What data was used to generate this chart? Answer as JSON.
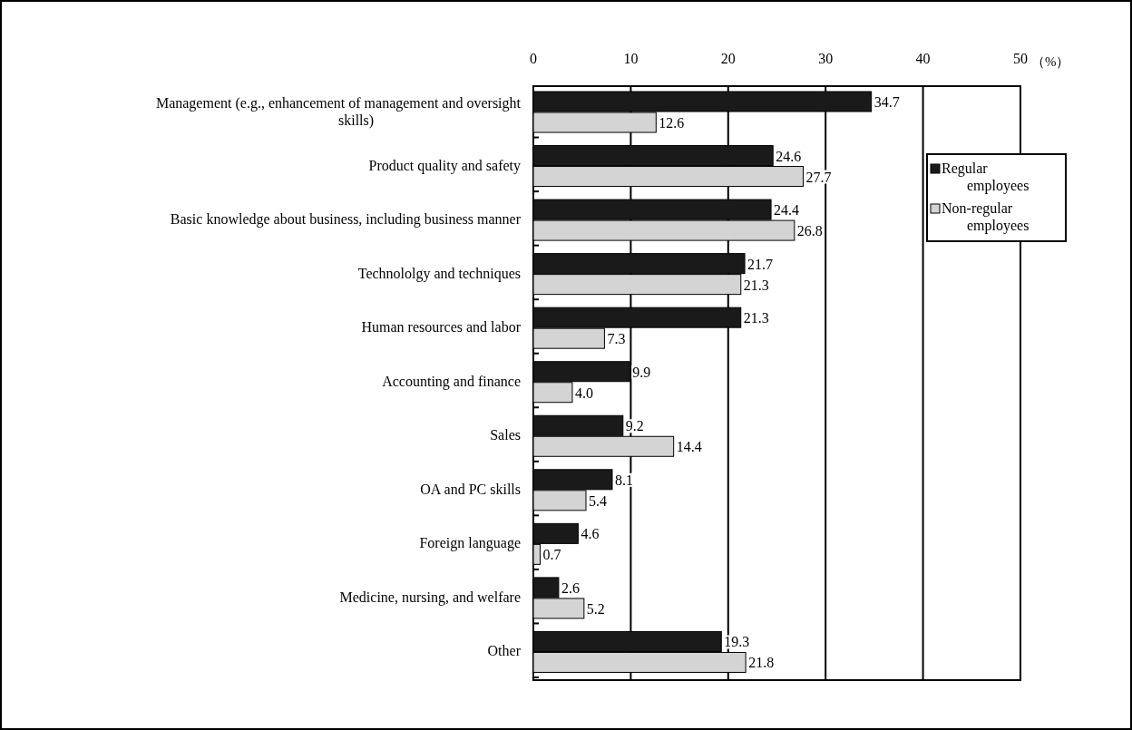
{
  "chart_data": {
    "type": "bar",
    "orientation": "horizontal",
    "xlabel": "（%）",
    "categories": [
      "Management (e.g., enhancement of management and oversight skills)",
      "Product quality and safety",
      "Basic knowledge about business, including business manner",
      "Technololgy and techniques",
      "Human resources and labor",
      "Accounting and finance",
      "Sales",
      "OA and PC skills",
      "Foreign language",
      "Medicine, nursing, and welfare",
      "Other"
    ],
    "series": [
      {
        "name": "Regular employees",
        "color": "#1a1a1a",
        "values": [
          34.7,
          24.6,
          24.4,
          21.7,
          21.3,
          9.9,
          9.2,
          8.1,
          4.6,
          2.6,
          19.3
        ],
        "value_labels": [
          "34.7",
          "24.6",
          "24.4",
          "21.7",
          "21.3",
          "9.9",
          "9.2",
          "8.1",
          "4.6",
          "2.6",
          "19.3"
        ]
      },
      {
        "name": "Non-regular employees",
        "color": "#d4d4d4",
        "values": [
          12.6,
          27.7,
          26.8,
          21.3,
          7.3,
          4.0,
          14.4,
          5.4,
          0.7,
          5.2,
          21.8
        ],
        "value_labels": [
          "12.6",
          "27.7",
          "26.8",
          "21.3",
          "7.3",
          "4.0",
          "14.4",
          "5.4",
          "0.7",
          "5.2",
          "21.8"
        ]
      }
    ],
    "xlim": [
      0,
      50
    ],
    "xticks": [
      0,
      10,
      20,
      30,
      40,
      50
    ],
    "grid": "x",
    "legend": "right"
  }
}
